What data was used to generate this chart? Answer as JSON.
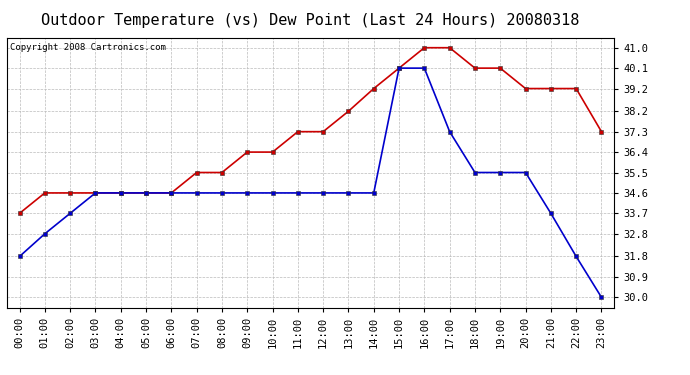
{
  "title": "Outdoor Temperature (vs) Dew Point (Last 24 Hours) 20080318",
  "copyright": "Copyright 2008 Cartronics.com",
  "x_labels": [
    "00:00",
    "01:00",
    "02:00",
    "03:00",
    "04:00",
    "05:00",
    "06:00",
    "07:00",
    "08:00",
    "09:00",
    "10:00",
    "11:00",
    "12:00",
    "13:00",
    "14:00",
    "15:00",
    "16:00",
    "17:00",
    "18:00",
    "19:00",
    "20:00",
    "21:00",
    "22:00",
    "23:00"
  ],
  "temp_red": [
    33.7,
    34.6,
    34.6,
    34.6,
    34.6,
    34.6,
    34.6,
    35.5,
    35.5,
    36.4,
    36.4,
    37.3,
    37.3,
    38.2,
    39.2,
    40.1,
    41.0,
    41.0,
    40.1,
    40.1,
    39.2,
    39.2,
    39.2,
    37.3
  ],
  "dew_blue": [
    31.8,
    32.8,
    33.7,
    34.6,
    34.6,
    34.6,
    34.6,
    34.6,
    34.6,
    34.6,
    34.6,
    34.6,
    34.6,
    34.6,
    34.6,
    40.1,
    40.1,
    37.3,
    35.5,
    35.5,
    35.5,
    33.7,
    31.8,
    30.0
  ],
  "red_color": "#cc0000",
  "blue_color": "#0000cc",
  "bg_color": "#ffffff",
  "grid_color": "#bbbbbb",
  "y_ticks": [
    30.0,
    30.9,
    31.8,
    32.8,
    33.7,
    34.6,
    35.5,
    36.4,
    37.3,
    38.2,
    39.2,
    40.1,
    41.0
  ],
  "ylim": [
    29.55,
    41.45
  ],
  "title_fontsize": 11,
  "tick_fontsize": 7.5,
  "copyright_fontsize": 6.5,
  "marker": "s",
  "marker_size": 2.5,
  "linewidth": 1.2
}
